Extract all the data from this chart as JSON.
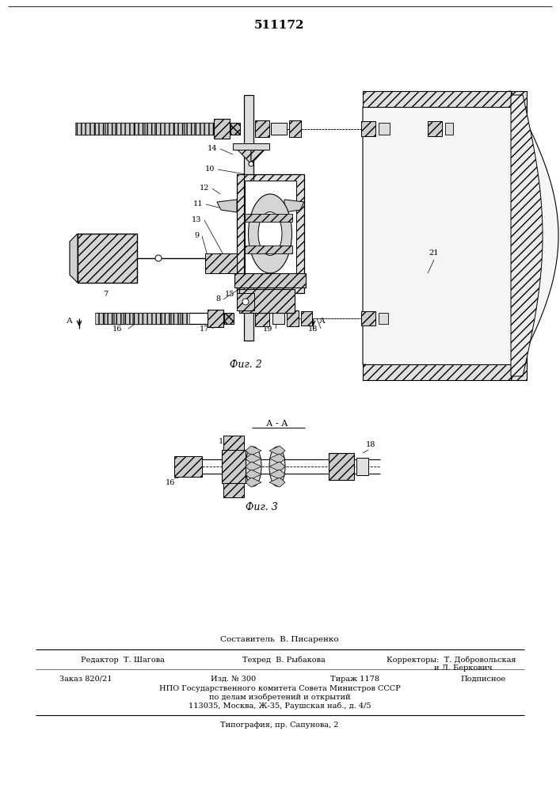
{
  "patent_number": "511172",
  "bg_color": "#ffffff",
  "fig2_caption": "Фиг. 2",
  "fig3_caption": "Фиг. 3",
  "section_label": "А - А",
  "composer_line": "Составитель  В. Писаренко",
  "npo_line": "НПО Государственного комитета Совета Министров СССР",
  "npo_line2": "по делам изобретений и открытий",
  "npo_line3": "113035, Москва, Ж-35, Раушская наб., д. 4/5",
  "typo_line": "Типография, пр. Сапунова, 2"
}
